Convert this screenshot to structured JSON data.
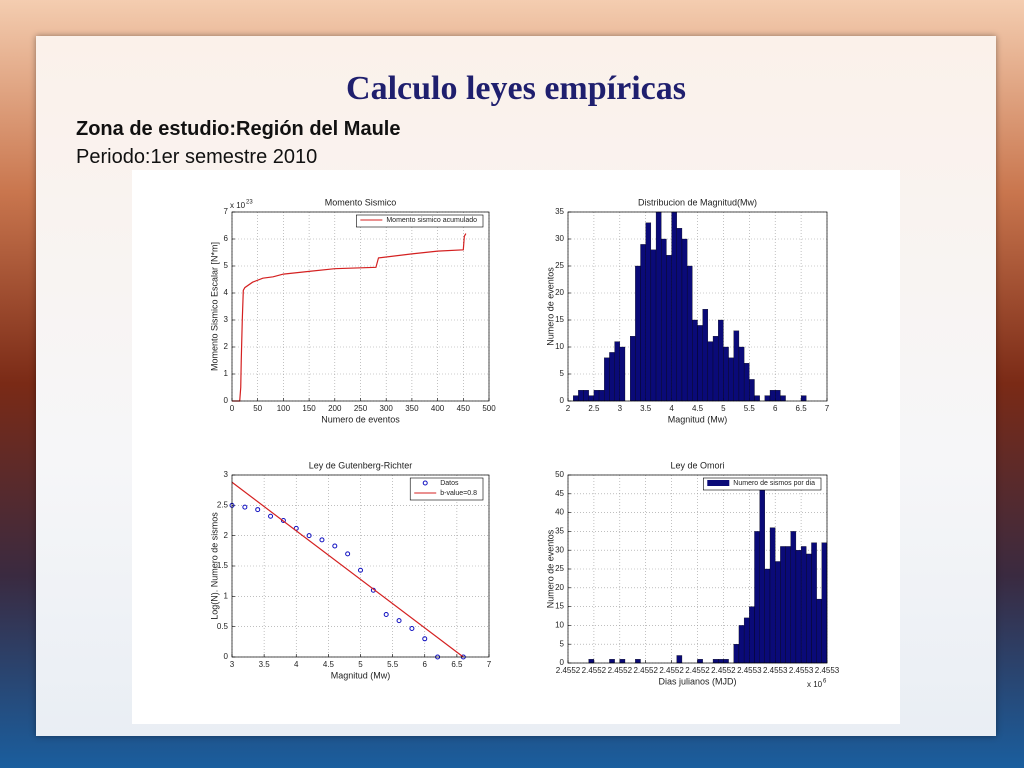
{
  "slide": {
    "title": "Calculo leyes empíricas",
    "subtitle": "Zona de estudio:Región del Maule",
    "period": "Periodo:1er semestre 2010"
  },
  "chart_data": [
    {
      "type": "line",
      "title": "Momento Sismico",
      "x_label": "Numero de eventos",
      "y_label": "Momento Sismico Escalar [N*m]",
      "y_offset_text": "x 10",
      "y_offset_exponent": "23",
      "xlim": [
        0,
        500
      ],
      "xticks": [
        0,
        50,
        100,
        150,
        200,
        250,
        300,
        350,
        400,
        450,
        500
      ],
      "ylim": [
        0,
        7
      ],
      "yticks": [
        0,
        1,
        2,
        3,
        4,
        5,
        6,
        7
      ],
      "grid": true,
      "legend": "upper right",
      "series": [
        {
          "name": "Momento sismico acumulado",
          "color": "#d42020",
          "x": [
            0,
            15,
            17,
            18,
            20,
            22,
            25,
            40,
            60,
            80,
            100,
            150,
            200,
            280,
            285,
            350,
            400,
            450,
            452,
            455
          ],
          "values": [
            0,
            0,
            0.5,
            1.5,
            3,
            4.1,
            4.2,
            4.4,
            4.55,
            4.6,
            4.7,
            4.8,
            4.9,
            4.95,
            5.3,
            5.45,
            5.55,
            5.6,
            6.1,
            6.2
          ]
        }
      ]
    },
    {
      "type": "histogram",
      "title": "Distribucion de Magnitud(Mw)",
      "x_label": "Magnitud (Mw)",
      "y_label": "Numero de eventos",
      "xlim": [
        2,
        7
      ],
      "xticks": [
        2,
        2.5,
        3,
        3.5,
        4,
        4.5,
        5,
        5.5,
        6,
        6.5,
        7
      ],
      "ylim": [
        0,
        35
      ],
      "yticks": [
        0,
        5,
        10,
        15,
        20,
        25,
        30,
        35
      ],
      "grid": true,
      "color": "#0a0a78",
      "bins": [
        2.1,
        2.2,
        2.3,
        2.4,
        2.5,
        2.6,
        2.7,
        2.8,
        2.9,
        3.0,
        3.1,
        3.2,
        3.3,
        3.4,
        3.5,
        3.6,
        3.7,
        3.8,
        3.9,
        4.0,
        4.1,
        4.2,
        4.3,
        4.4,
        4.5,
        4.6,
        4.7,
        4.8,
        4.9,
        5.0,
        5.1,
        5.2,
        5.3,
        5.4,
        5.5,
        5.6,
        5.7,
        5.8,
        5.9,
        6.0,
        6.1,
        6.2,
        6.3,
        6.4,
        6.5,
        6.6
      ],
      "values": [
        1,
        2,
        2,
        1,
        2,
        2,
        8,
        9,
        11,
        10,
        0,
        12,
        25,
        29,
        33,
        28,
        35,
        30,
        27,
        35,
        32,
        30,
        25,
        15,
        14,
        17,
        11,
        12,
        15,
        10,
        8,
        13,
        10,
        7,
        4,
        1,
        0,
        1,
        2,
        2,
        1,
        0,
        0,
        0,
        1
      ]
    },
    {
      "type": "scatter",
      "title": "Ley de Gutenberg-Richter",
      "x_label": "Magnitud (Mw)",
      "y_label": "Log(N). Numero de sismos",
      "xlim": [
        3,
        7
      ],
      "xticks": [
        3,
        3.5,
        4,
        4.5,
        5,
        5.5,
        6,
        6.5,
        7
      ],
      "ylim": [
        0,
        3
      ],
      "yticks": [
        0,
        0.5,
        1,
        1.5,
        2,
        2.5,
        3
      ],
      "grid": true,
      "legend": "upper right",
      "series": [
        {
          "name": "Datos",
          "color": "#1010c0",
          "style": "markers",
          "x": [
            3.0,
            3.2,
            3.4,
            3.6,
            3.8,
            4.0,
            4.2,
            4.4,
            4.6,
            4.8,
            5.0,
            5.2,
            5.4,
            5.6,
            5.8,
            6.0,
            6.2,
            6.6
          ],
          "values": [
            2.5,
            2.47,
            2.43,
            2.32,
            2.25,
            2.12,
            2.0,
            1.93,
            1.83,
            1.7,
            1.43,
            1.1,
            0.7,
            0.6,
            0.47,
            0.3,
            0,
            0
          ]
        },
        {
          "name": "b-value=0.8",
          "color": "#d42020",
          "style": "line",
          "x": [
            3,
            6.6
          ],
          "values": [
            2.88,
            0
          ]
        }
      ]
    },
    {
      "type": "histogram",
      "title": "Ley de Omori",
      "x_label": "Dias julianos (MJD)",
      "y_label": "Numero de eventos",
      "x_offset_text": "x 10",
      "x_offset_exponent": "6",
      "xlim": [
        2455190,
        2455290
      ],
      "xticks": [
        {
          "value": 2455190,
          "label": "2.4552"
        },
        {
          "value": 2455200,
          "label": "2.4552"
        },
        {
          "value": 2455210,
          "label": "2.4552"
        },
        {
          "value": 2455220,
          "label": "2.4552"
        },
        {
          "value": 2455230,
          "label": "2.4552"
        },
        {
          "value": 2455240,
          "label": "2.4552"
        },
        {
          "value": 2455250,
          "label": "2.4552"
        },
        {
          "value": 2455260,
          "label": "2.4553"
        },
        {
          "value": 2455270,
          "label": "2.4553"
        },
        {
          "value": 2455280,
          "label": "2.4553"
        },
        {
          "value": 2455290,
          "label": "2.4553"
        }
      ],
      "ylim": [
        0,
        50
      ],
      "yticks": [
        0,
        5,
        10,
        15,
        20,
        25,
        30,
        35,
        40,
        45,
        50
      ],
      "grid": true,
      "legend": "upper right",
      "bins": [
        2455190,
        2455192,
        2455194,
        2455196,
        2455198,
        2455200,
        2455202,
        2455204,
        2455206,
        2455208,
        2455210,
        2455212,
        2455214,
        2455216,
        2455218,
        2455220,
        2455222,
        2455224,
        2455226,
        2455228,
        2455230,
        2455232,
        2455234,
        2455236,
        2455238,
        2455240,
        2455242,
        2455244,
        2455246,
        2455248,
        2455250,
        2455252,
        2455254,
        2455256,
        2455258,
        2455260,
        2455262,
        2455264,
        2455266,
        2455268,
        2455270,
        2455272,
        2455274,
        2455276,
        2455278,
        2455280,
        2455282,
        2455284,
        2455286,
        2455288,
        2455290
      ],
      "series": [
        {
          "name": "Numero de sismos por dia",
          "color": "#0a0a78",
          "values": [
            0,
            0,
            0,
            0,
            1,
            0,
            0,
            0,
            1,
            0,
            1,
            0,
            0,
            1,
            0,
            0,
            0,
            0,
            0,
            0,
            0,
            2,
            0,
            0,
            0,
            1,
            0,
            0,
            1,
            1,
            1,
            0,
            5,
            10,
            12,
            15,
            35,
            46,
            25,
            36,
            27,
            31,
            31,
            35,
            30,
            31,
            29,
            32,
            17,
            32
          ]
        }
      ]
    }
  ]
}
